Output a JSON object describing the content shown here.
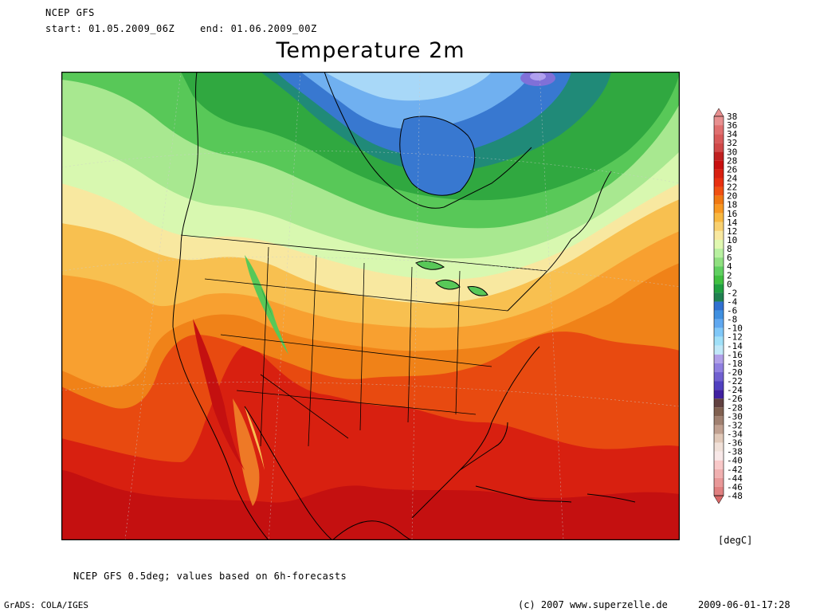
{
  "header": {
    "model": "NCEP GFS",
    "start": "start: 01.05.2009_06Z",
    "end": "end: 01.06.2009_00Z",
    "title": "Temperature 2m"
  },
  "colorbar": {
    "unit": "[degC]",
    "labels": [
      "38",
      "36",
      "34",
      "32",
      "30",
      "28",
      "26",
      "24",
      "22",
      "20",
      "18",
      "16",
      "14",
      "12",
      "10",
      "8",
      "6",
      "4",
      "2",
      "0",
      "-2",
      "-4",
      "-6",
      "-8",
      "-10",
      "-12",
      "-14",
      "-16",
      "-18",
      "-20",
      "-22",
      "-24",
      "-26",
      "-28",
      "-30",
      "-32",
      "-34",
      "-36",
      "-38",
      "-40",
      "-42",
      "-44",
      "-46",
      "-48"
    ],
    "colors": [
      "#e89090",
      "#e07070",
      "#d85a5a",
      "#d04848",
      "#c02020",
      "#c81010",
      "#d82010",
      "#e83010",
      "#f05010",
      "#f07810",
      "#f89820",
      "#f8b840",
      "#f8d070",
      "#f8e8a0",
      "#e0f8b0",
      "#b8f0a0",
      "#90e080",
      "#60d060",
      "#40c040",
      "#20a040",
      "#208050",
      "#3070d0",
      "#4090e0",
      "#60a8f0",
      "#80c8f8",
      "#a0e0f8",
      "#c0e8f8",
      "#b0a0e8",
      "#9080e0",
      "#7060d0",
      "#5040c0",
      "#4020a0",
      "#604040",
      "#806050",
      "#a08070",
      "#c0a090",
      "#e0c8b8",
      "#f0e0d8",
      "#f8e8e8",
      "#f8c8c8",
      "#f0b0b0",
      "#e89898",
      "#e08080",
      "#d86868"
    ]
  },
  "map_colors": {
    "deep_red": "#c41010",
    "red": "#d82010",
    "orange_red": "#e84a10",
    "orange": "#f08218",
    "light_orange": "#f8a030",
    "yellow_orange": "#f8c050",
    "light_yellow": "#f8e8a0",
    "pale_green": "#d8f8b0",
    "light_green": "#a8e890",
    "green": "#58c858",
    "dark_green": "#30a840",
    "teal": "#208a78",
    "blue": "#3878d0",
    "light_blue": "#70b0f0",
    "pale_blue": "#a8d8f8",
    "purple": "#8070d8"
  },
  "footer": {
    "note": "NCEP GFS 0.5deg; values based on 6h-forecasts",
    "software": "GrADS: COLA/IGES",
    "copyright": "(c) 2007 www.superzelle.de",
    "timestamp": "2009-06-01-17:28"
  }
}
